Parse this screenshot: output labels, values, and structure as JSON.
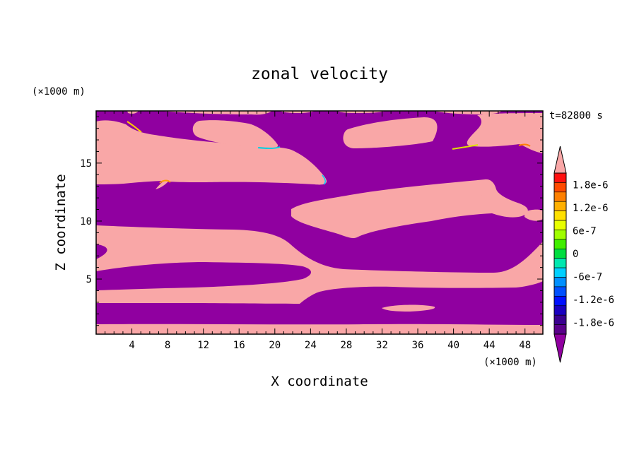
{
  "chart_data": {
    "type": "heatmap",
    "title": "zonal velocity",
    "xlabel": "X coordinate",
    "ylabel": "Z coordinate",
    "x_unit": "(×1000 m)",
    "y_unit": "(×1000 m)",
    "time_label": "t=82800 s",
    "xlim": [
      0,
      50
    ],
    "ylim": [
      0.25,
      19.5
    ],
    "x_ticks": [
      4,
      8,
      12,
      16,
      20,
      24,
      28,
      32,
      36,
      40,
      44,
      48
    ],
    "y_ticks": [
      5,
      10,
      15
    ],
    "colorbar": {
      "tick_labels": [
        "1.8e-6",
        "1.2e-6",
        "6e-7",
        "0",
        "-6e-7",
        "-1.2e-6",
        "-1.8e-6"
      ],
      "tick_values": [
        1.8e-06,
        1.2e-06,
        6e-07,
        0,
        -6e-07,
        -1.2e-06,
        -1.8e-06
      ],
      "range": [
        -2.1e-06,
        2.1e-06
      ],
      "colors_top_to_bottom": [
        "#ff1010",
        "#ff4a00",
        "#ff8000",
        "#ffb000",
        "#ffe000",
        "#e8ff00",
        "#a0ff00",
        "#40ee00",
        "#00dd40",
        "#00e8b0",
        "#00d0ff",
        "#0090ff",
        "#0050ff",
        "#0010ff",
        "#1a00c0",
        "#3a0090",
        "#5a008a"
      ],
      "top_extension_color": "#f9a7a7",
      "bottom_extension_color": "#9000a0"
    },
    "regions": {
      "positive_color": "#f9a7a7",
      "negative_color": "#9000a0",
      "positive_value": ">1.8e-6",
      "negative_value": "<-1.8e-6"
    }
  }
}
